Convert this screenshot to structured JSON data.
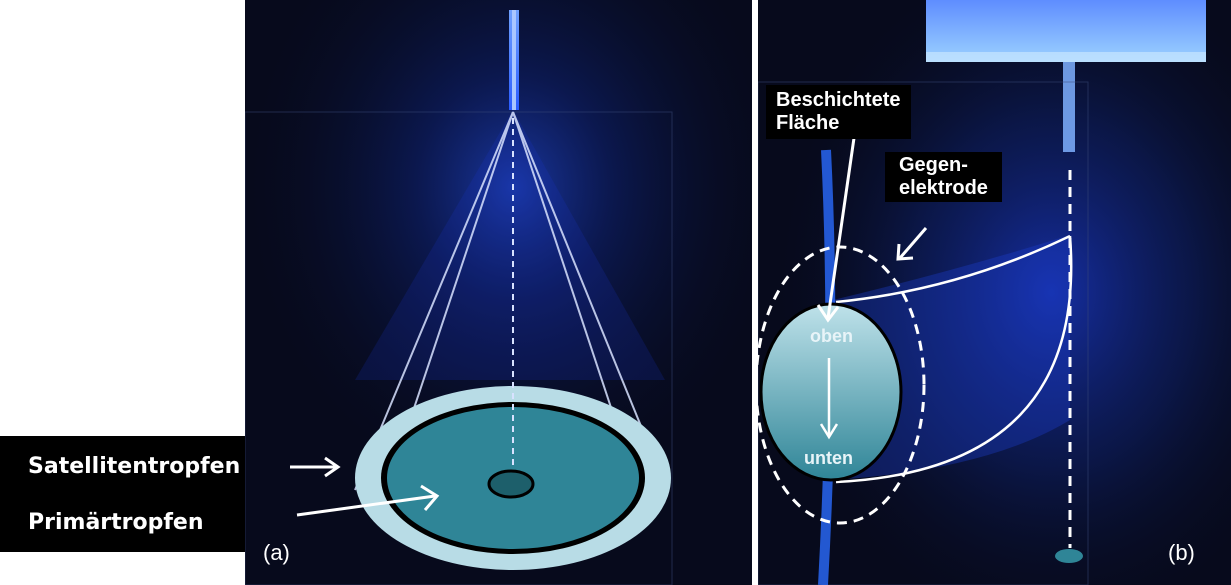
{
  "panel_a": {
    "tag": "(a)",
    "labels": {
      "satellite": "Satellitentropfen",
      "primary": "Primärtropfen"
    }
  },
  "panel_b": {
    "tag": "(b)",
    "labels": {
      "coated_line1": "Beschichtete",
      "coated_line2": "Fläche",
      "counter_line1": "Gegen-",
      "counter_line2": "elektrode",
      "top": "oben",
      "bottom": "unten"
    }
  },
  "colors": {
    "background": "#070a1c",
    "plasma": "#2a5cff",
    "disc_outer": "#b8dce6",
    "disc_inner": "#2f8597",
    "center_dot": "#1d5f6b"
  }
}
